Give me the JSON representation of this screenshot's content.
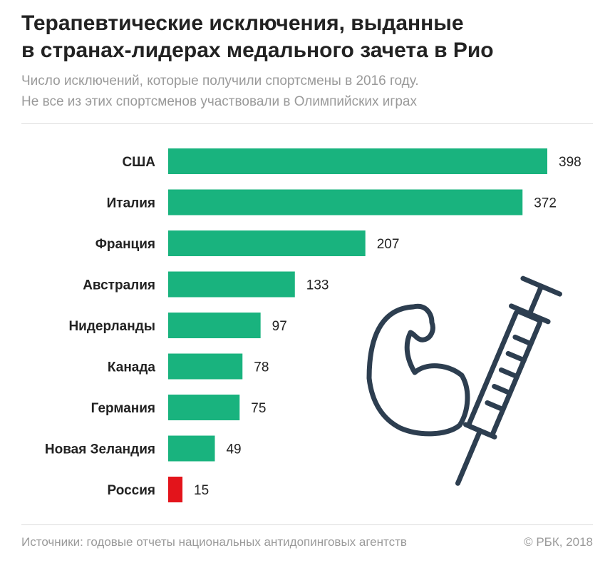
{
  "title_line1": "Терапевтические исключения, выданные",
  "title_line2": "в странах-лидерах медального зачета в Рио",
  "subtitle_line1": "Число исключений, которые получили спортсмены в 2016 году.",
  "subtitle_line2": "Не все из этих спортсменов участвовали в Олимпийских играх",
  "source": "Источники: годовые отчеты национальных антидопинговых агентств",
  "copyright": "© РБК, 2018",
  "colors": {
    "bar": "#19b37e",
    "highlight": "#e3141b",
    "icon": "#2d3e50"
  },
  "illustration": {
    "icon": "muscle-arm-syringe-icon"
  },
  "chart_data": {
    "type": "bar",
    "orientation": "horizontal",
    "categories": [
      "США",
      "Италия",
      "Франция",
      "Австралия",
      "Нидерланды",
      "Канада",
      "Германия",
      "Новая Зеландия",
      "Россия"
    ],
    "values": [
      398,
      372,
      207,
      133,
      97,
      78,
      75,
      49,
      15
    ],
    "highlight_category": "Россия",
    "xlim": [
      0,
      398
    ],
    "grid": false,
    "legend": "none"
  }
}
